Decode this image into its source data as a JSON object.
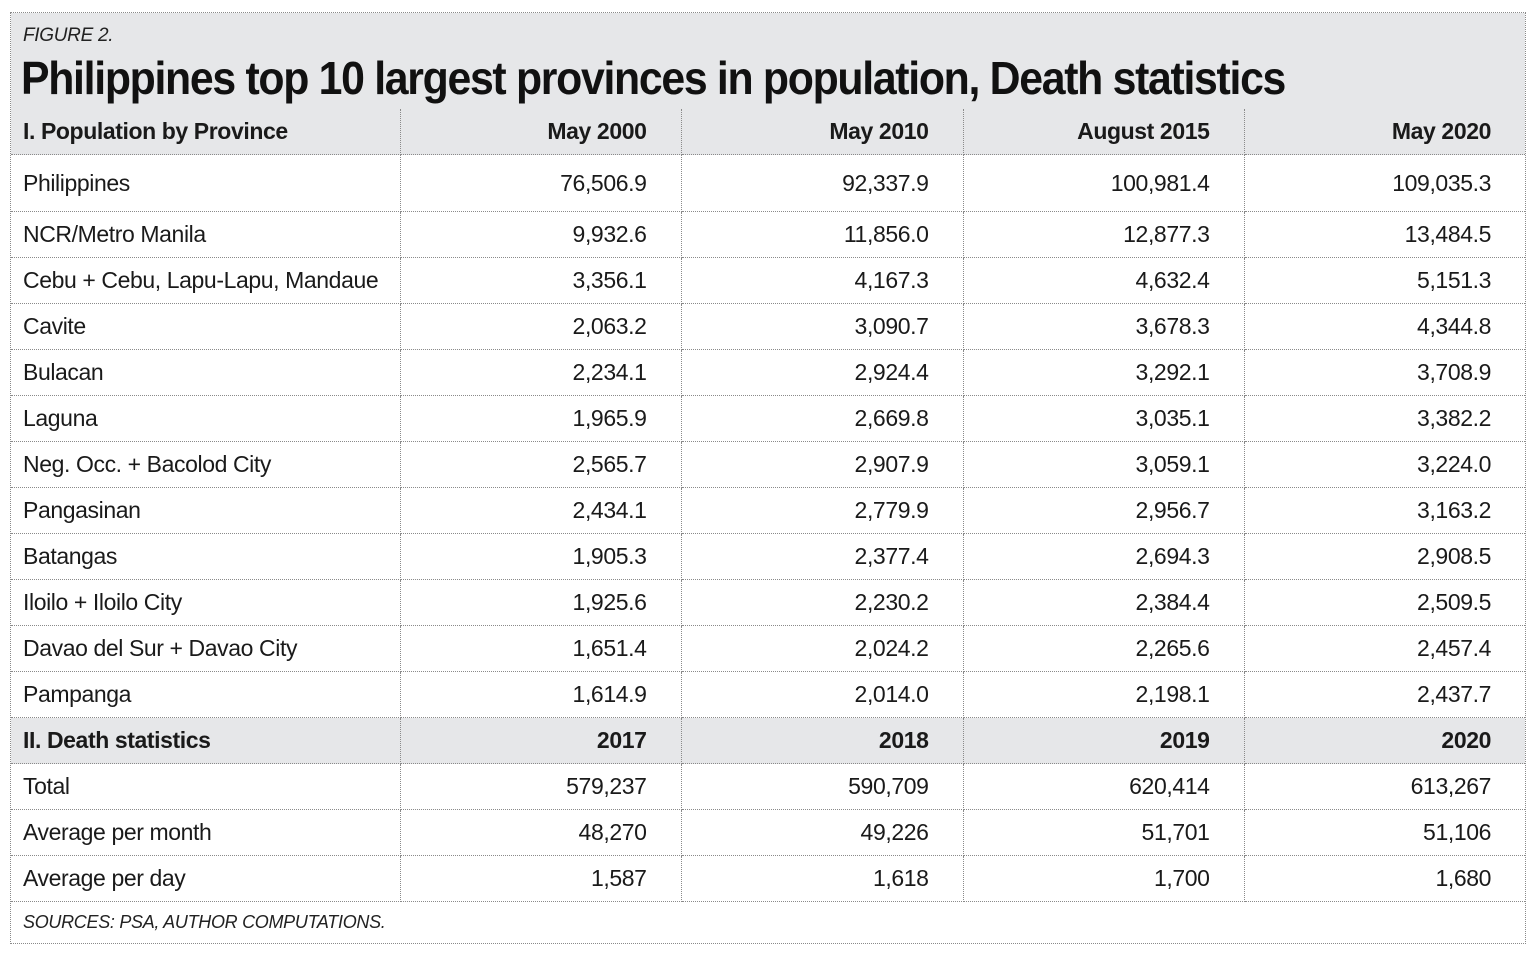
{
  "figure_label": "FIGURE 2.",
  "title": "Philippines top 10 largest provinces in population, Death statistics",
  "sources": "SOURCES: PSA, AUTHOR COMPUTATIONS.",
  "colors": {
    "header_background": "#e6e7e9",
    "text": "#1a1a1a",
    "border": "#8a8a8a"
  },
  "chart_data": {
    "type": "table",
    "title": "Philippines top 10 largest provinces in population, Death statistics",
    "sections": [
      {
        "header": "I. Population by Province",
        "columns": [
          "May 2000",
          "May 2010",
          "August 2015",
          "May 2020"
        ],
        "rows": [
          {
            "label": "Philippines",
            "values": [
              "76,506.9",
              "92,337.9",
              "100,981.4",
              "109,035.3"
            ]
          },
          {
            "label": "NCR/Metro Manila",
            "values": [
              "9,932.6",
              "11,856.0",
              "12,877.3",
              "13,484.5"
            ]
          },
          {
            "label": "Cebu + Cebu, Lapu-Lapu, Mandaue",
            "values": [
              "3,356.1",
              "4,167.3",
              "4,632.4",
              "5,151.3"
            ]
          },
          {
            "label": "Cavite",
            "values": [
              "2,063.2",
              "3,090.7",
              "3,678.3",
              "4,344.8"
            ]
          },
          {
            "label": "Bulacan",
            "values": [
              "2,234.1",
              "2,924.4",
              "3,292.1",
              "3,708.9"
            ]
          },
          {
            "label": "Laguna",
            "values": [
              "1,965.9",
              "2,669.8",
              "3,035.1",
              "3,382.2"
            ]
          },
          {
            "label": "Neg. Occ. + Bacolod City",
            "values": [
              "2,565.7",
              "2,907.9",
              "3,059.1",
              "3,224.0"
            ]
          },
          {
            "label": "Pangasinan",
            "values": [
              "2,434.1",
              "2,779.9",
              "2,956.7",
              "3,163.2"
            ]
          },
          {
            "label": "Batangas",
            "values": [
              "1,905.3",
              "2,377.4",
              "2,694.3",
              "2,908.5"
            ]
          },
          {
            "label": "Iloilo + Iloilo City",
            "values": [
              "1,925.6",
              "2,230.2",
              "2,384.4",
              "2,509.5"
            ]
          },
          {
            "label": "Davao del Sur + Davao City",
            "values": [
              "1,651.4",
              "2,024.2",
              "2,265.6",
              "2,457.4"
            ]
          },
          {
            "label": "Pampanga",
            "values": [
              "1,614.9",
              "2,014.0",
              "2,198.1",
              "2,437.7"
            ]
          }
        ]
      },
      {
        "header": "II. Death statistics",
        "columns": [
          "2017",
          "2018",
          "2019",
          "2020"
        ],
        "rows": [
          {
            "label": "Total",
            "values": [
              "579,237",
              "590,709",
              "620,414",
              "613,267"
            ]
          },
          {
            "label": "Average per month",
            "values": [
              "48,270",
              "49,226",
              "51,701",
              "51,106"
            ]
          },
          {
            "label": "Average per day",
            "values": [
              "1,587",
              "1,618",
              "1,700",
              "1,680"
            ]
          }
        ]
      }
    ]
  }
}
